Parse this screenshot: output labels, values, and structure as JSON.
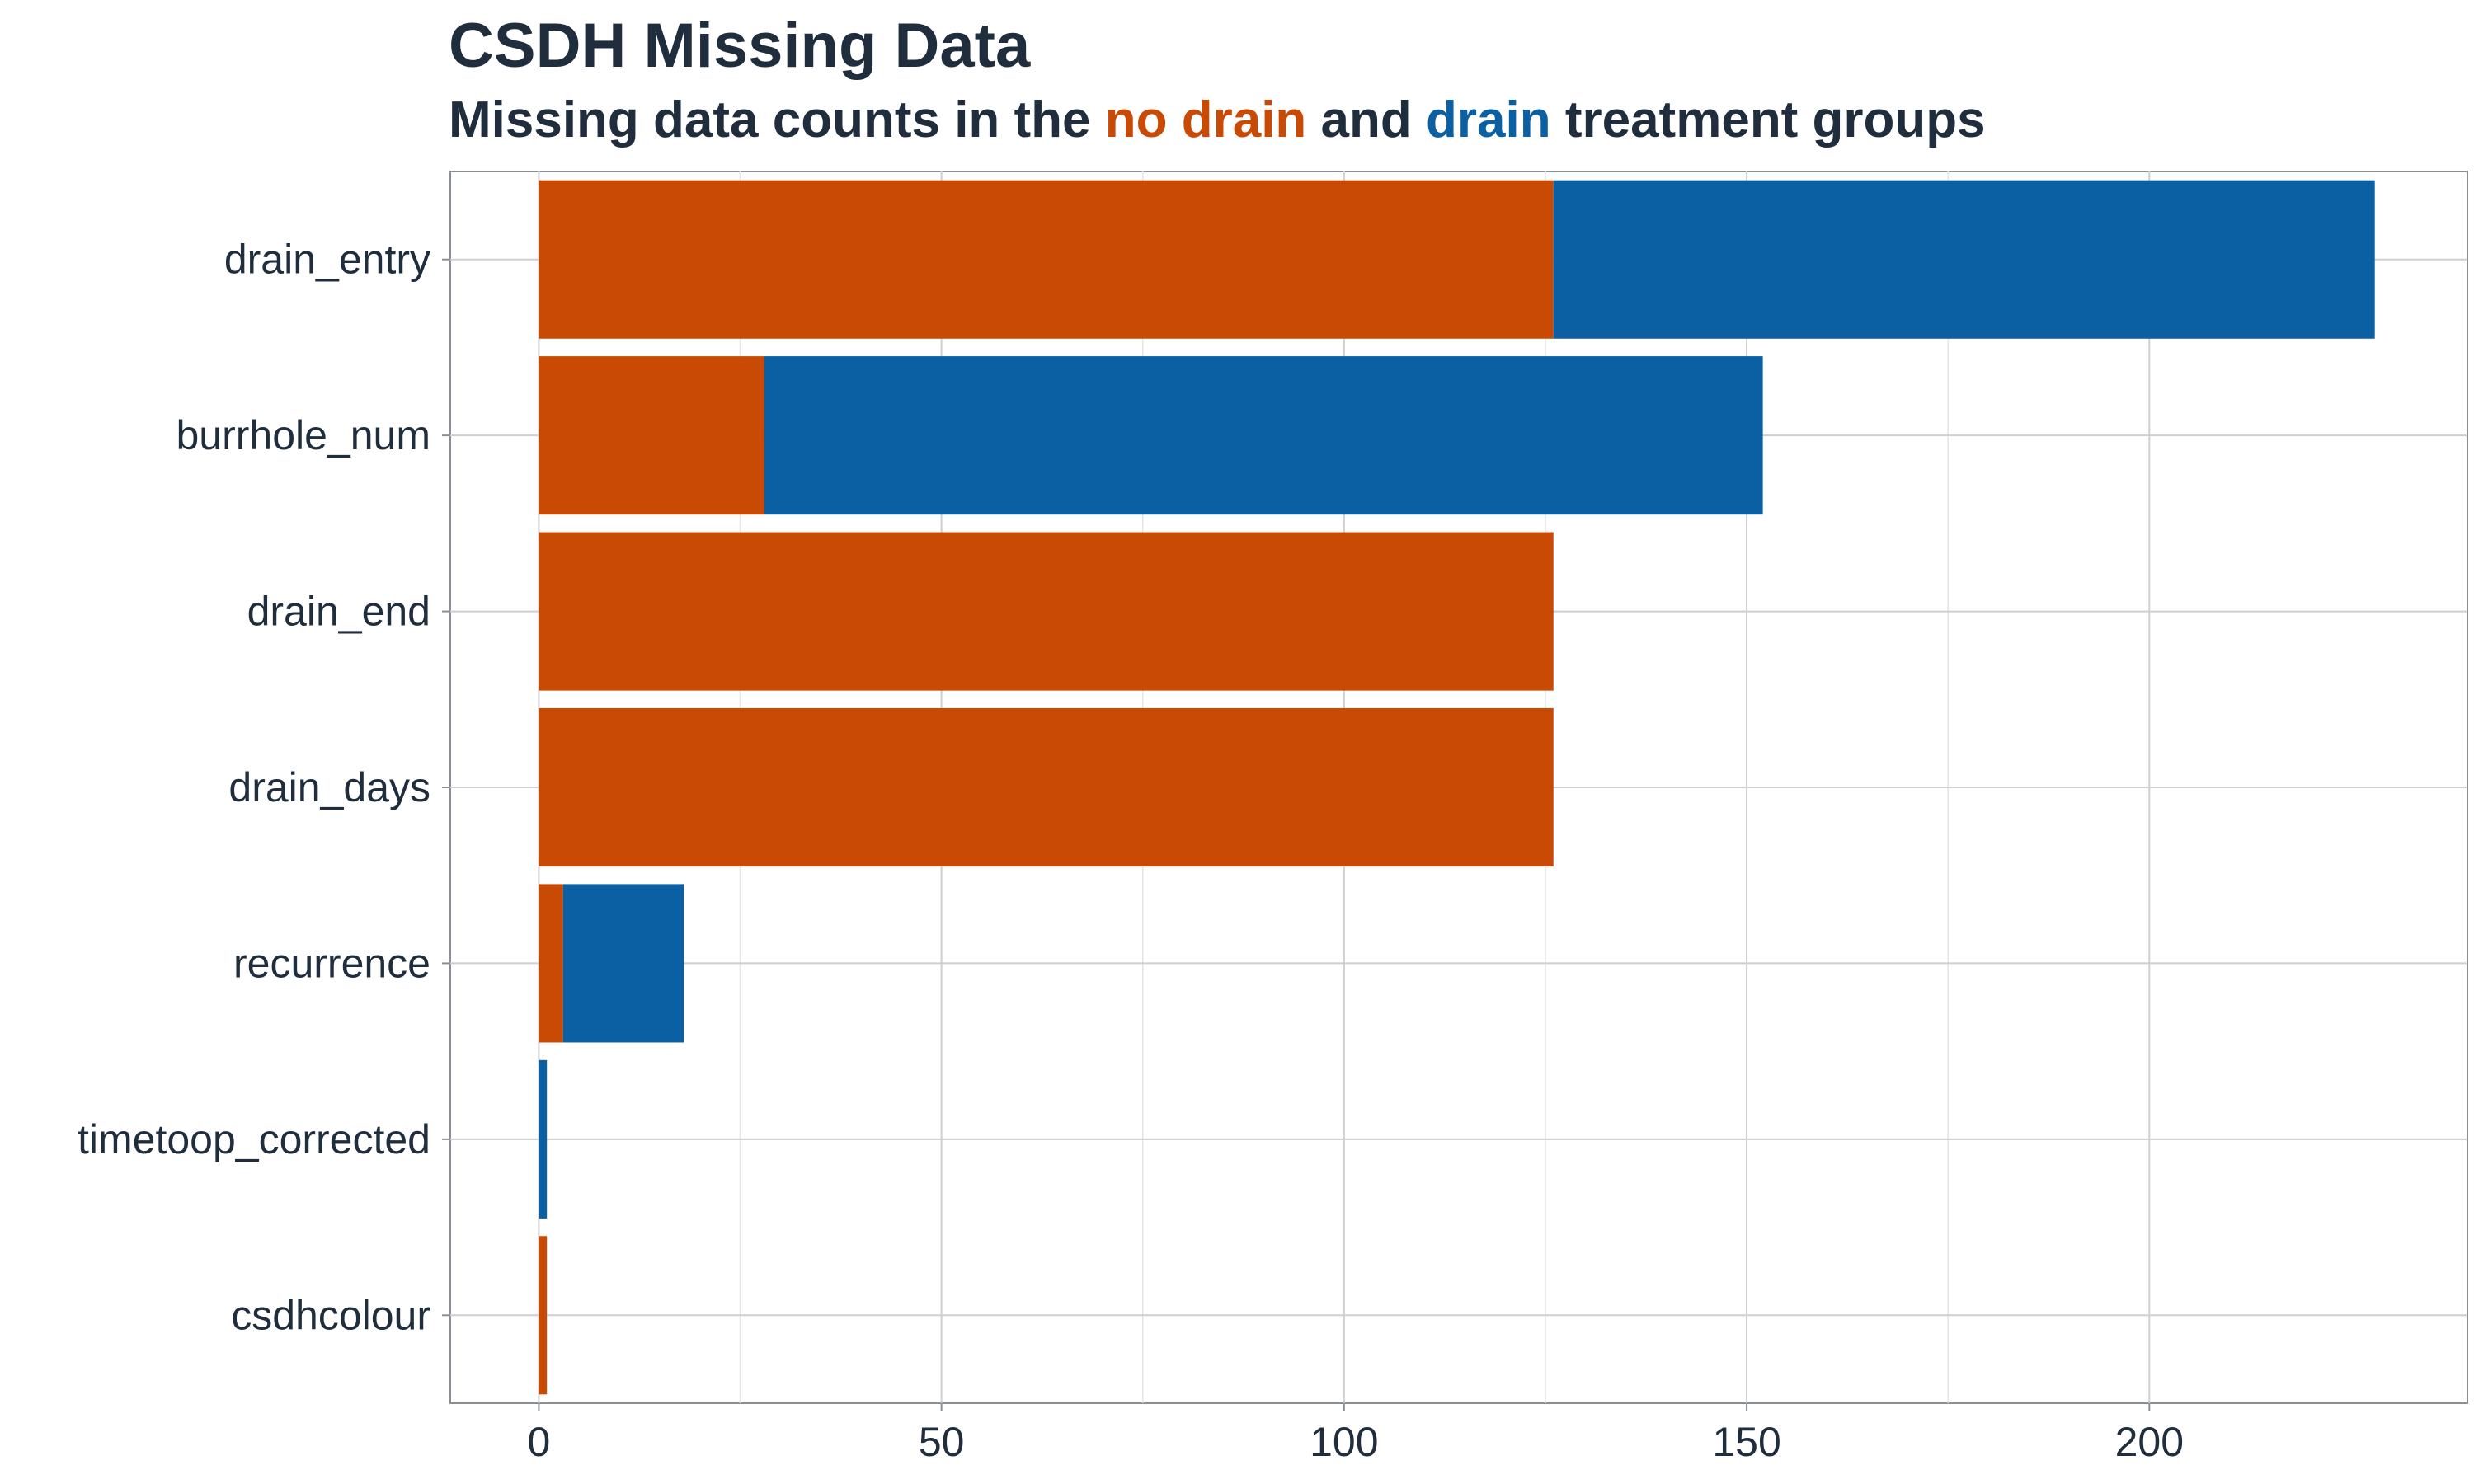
{
  "chart_data": {
    "type": "bar",
    "orientation": "horizontal",
    "stacked": true,
    "title": "CSDH Missing Data",
    "subtitle": {
      "prefix": "Missing data counts in the ",
      "group1": "no drain",
      "middle": " and ",
      "group2": "drain",
      "suffix": " treatment groups"
    },
    "categories": [
      "drain_entry",
      "burrhole_num",
      "drain_end",
      "drain_days",
      "recurrence",
      "timetoop_corrected",
      "csdhcolour"
    ],
    "series": [
      {
        "name": "no drain",
        "color": "#c84a05",
        "values": [
          126,
          28,
          126,
          126,
          3,
          0,
          1
        ]
      },
      {
        "name": "drain",
        "color": "#0b5fa3",
        "values": [
          102,
          124,
          0,
          0,
          15,
          1,
          0
        ]
      }
    ],
    "xlim": [
      -11,
      239.5
    ],
    "xticks": [
      0,
      50,
      100,
      150,
      200
    ],
    "xlabel": "",
    "ylabel": "",
    "grid": true,
    "legend": "none"
  }
}
